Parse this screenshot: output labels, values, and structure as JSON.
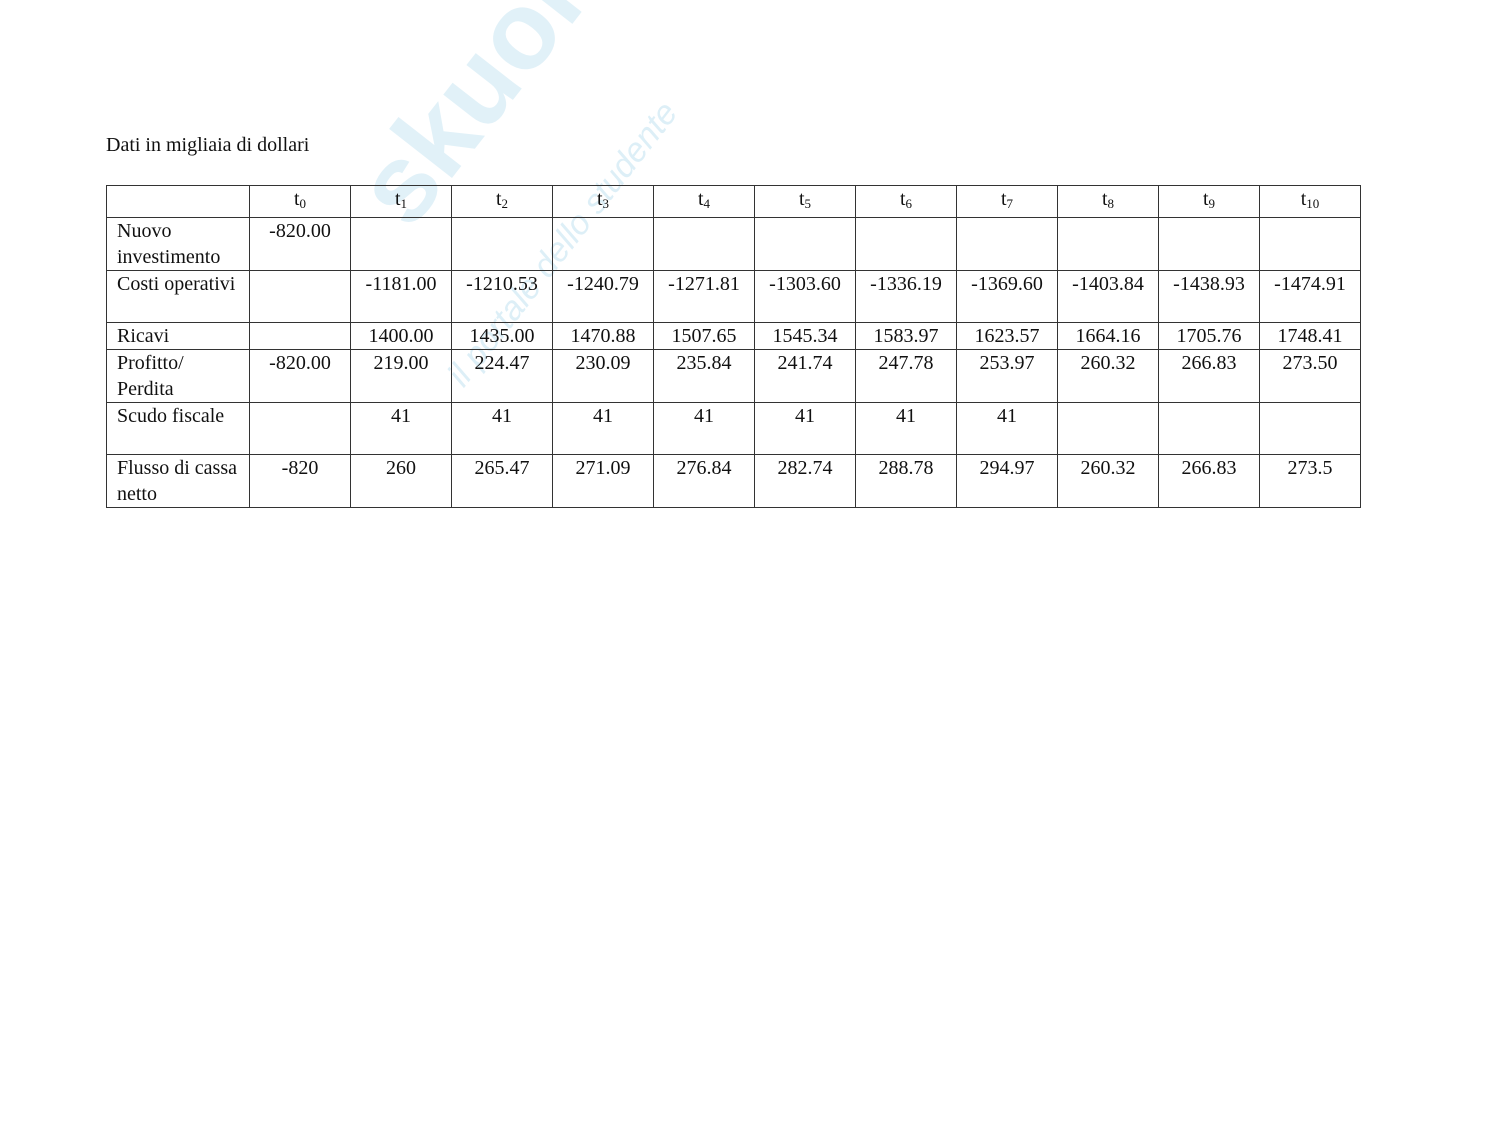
{
  "caption": "Dati in migliaia di dollari",
  "watermark": {
    "logo": "skuola.net",
    "tagline": "il portale dello studente"
  },
  "table": {
    "header": [
      "t0",
      "t1",
      "t2",
      "t3",
      "t4",
      "t5",
      "t6",
      "t7",
      "t8",
      "t9",
      "t10"
    ],
    "rows": [
      {
        "label": "Nuovo investimento",
        "values": [
          "-820.00",
          "",
          "",
          "",
          "",
          "",
          "",
          "",
          "",
          "",
          ""
        ]
      },
      {
        "label": "Costi operativi",
        "values": [
          "",
          "-1181.00",
          "-1210.53",
          "-1240.79",
          "-1271.81",
          "-1303.60",
          "-1336.19",
          "-1369.60",
          "-1403.84",
          "-1438.93",
          "-1474.91"
        ]
      },
      {
        "label": "Ricavi",
        "values": [
          "",
          "1400.00",
          "1435.00",
          "1470.88",
          "1507.65",
          "1545.34",
          "1583.97",
          "1623.57",
          "1664.16",
          "1705.76",
          "1748.41"
        ]
      },
      {
        "label": "Profitto/ Perdita",
        "values": [
          "-820.00",
          "219.00",
          "224.47",
          "230.09",
          "235.84",
          "241.74",
          "247.78",
          "253.97",
          "260.32",
          "266.83",
          "273.50"
        ]
      },
      {
        "label": "Scudo fiscale",
        "values": [
          "",
          "41",
          "41",
          "41",
          "41",
          "41",
          "41",
          "41",
          "",
          "",
          ""
        ]
      },
      {
        "label": "Flusso di cassa netto",
        "values": [
          "-820",
          "260",
          "265.47",
          "271.09",
          "276.84",
          "282.74",
          "288.78",
          "294.97",
          "260.32",
          "266.83",
          "273.5"
        ]
      }
    ]
  }
}
